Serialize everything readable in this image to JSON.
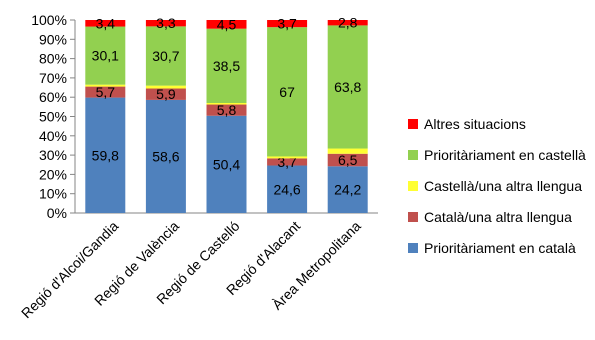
{
  "chart_data": {
    "type": "bar",
    "stacked": true,
    "percent_axis": true,
    "categories": [
      "Regió d'Alcoi/Gandia",
      "Regió de València",
      "Regió de Castelló",
      "Regió d'Alacant",
      "Àrea Metropolitana"
    ],
    "yticks": [
      "0%",
      "10%",
      "20%",
      "30%",
      "40%",
      "50%",
      "60%",
      "70%",
      "80%",
      "90%",
      "100%"
    ],
    "ylim": [
      0,
      100
    ],
    "grid": false,
    "legend_position": "right",
    "series": [
      {
        "name": "Prioritàriament en català",
        "color": "#4F81BD",
        "values": [
          59.8,
          58.6,
          50.4,
          24.6,
          24.2
        ],
        "labels": [
          "59,8",
          "58,6",
          "50,4",
          "24,6",
          "24,2"
        ]
      },
      {
        "name": "Català/una altra llengua",
        "color": "#C0504D",
        "values": [
          5.7,
          5.9,
          5.8,
          3.7,
          6.5
        ],
        "labels": [
          "5,7",
          "5,9",
          "5,8",
          "3,7",
          "6,5"
        ]
      },
      {
        "name": "Castellà/una altra llengua",
        "color": "#FFFF33",
        "values": [
          1.0,
          1.5,
          0.8,
          1.0,
          2.7
        ],
        "labels": [
          "",
          "",
          "",
          "",
          ""
        ]
      },
      {
        "name": "Prioritàriament en castellà",
        "color": "#92D050",
        "values": [
          30.1,
          30.7,
          38.5,
          67,
          63.8
        ],
        "labels": [
          "30,1",
          "30,7",
          "38,5",
          "67",
          "63,8"
        ]
      },
      {
        "name": "Altres situacions",
        "color": "#FF0000",
        "values": [
          3.4,
          3.3,
          4.5,
          3.7,
          2.8
        ],
        "labels": [
          "3,4",
          "3,3",
          "4,5",
          "3,7",
          "2,8"
        ]
      }
    ]
  }
}
